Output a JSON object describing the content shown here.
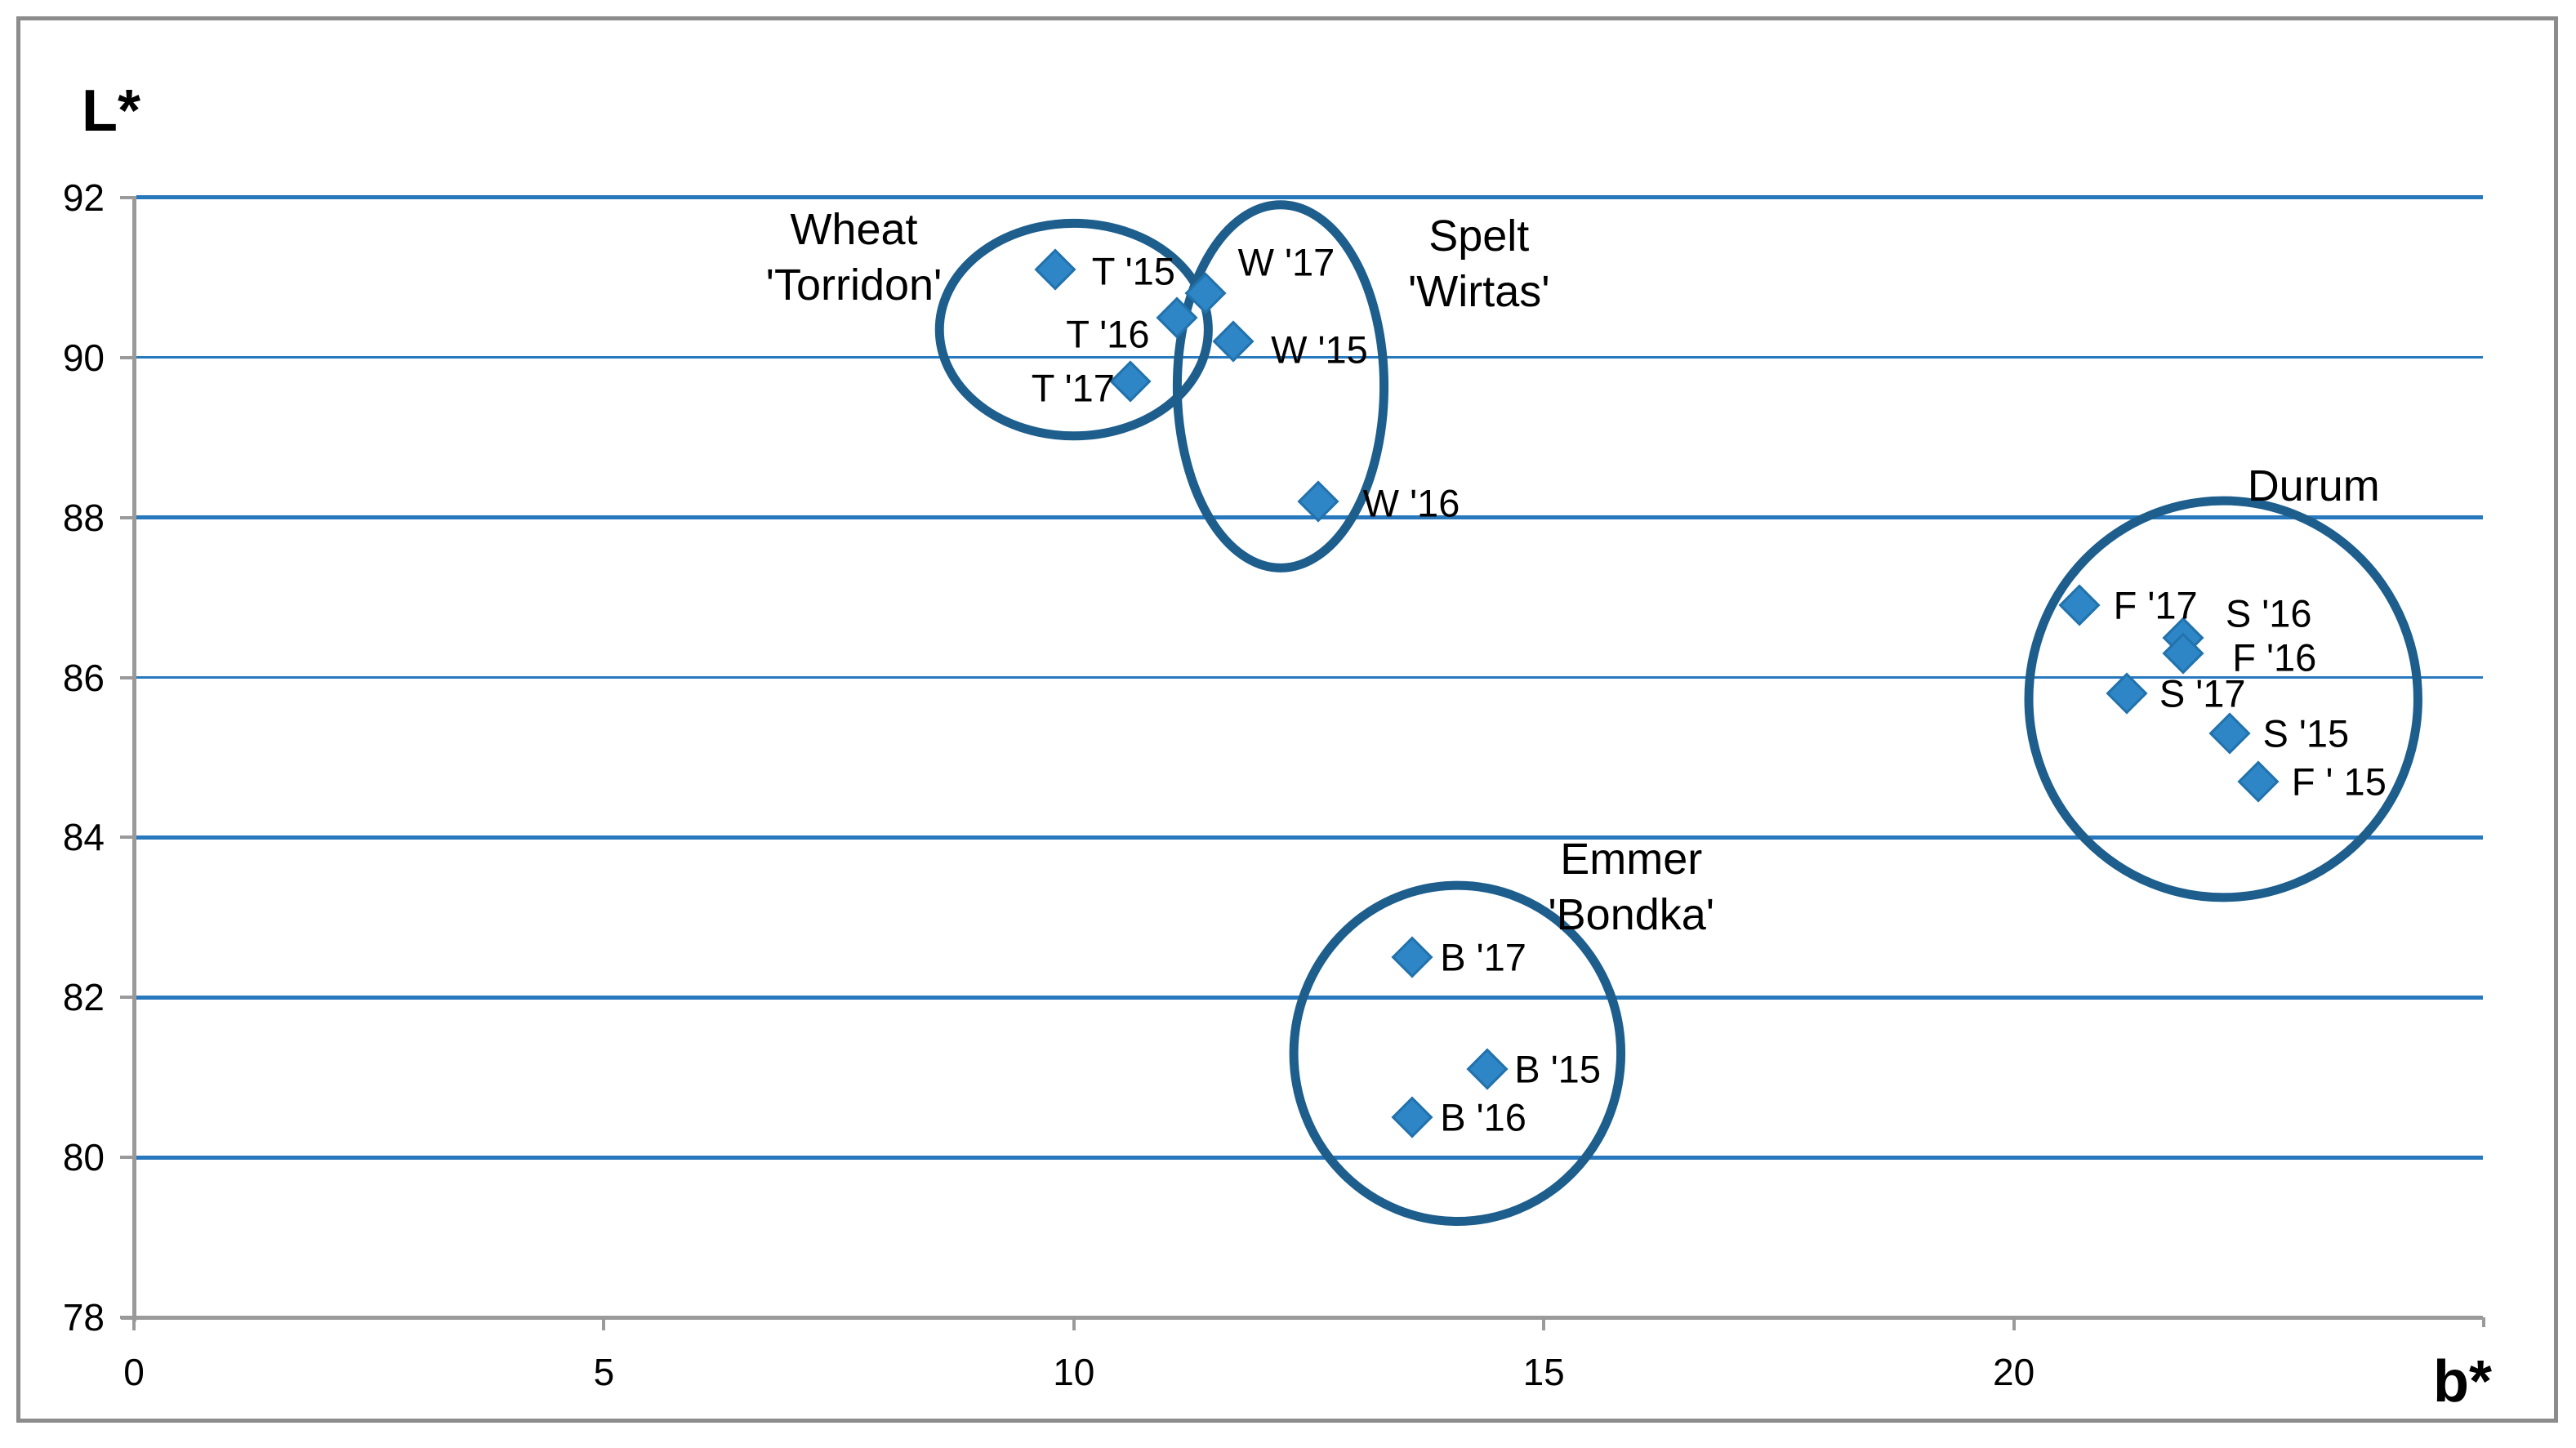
{
  "figure": {
    "y_axis_title": "L*",
    "x_axis_title": "b*"
  },
  "chart_data": {
    "type": "scatter",
    "title": "",
    "xlabel": "b*",
    "ylabel": "L*",
    "xlim": [
      0,
      25
    ],
    "ylim": [
      78,
      92
    ],
    "x_ticks": [
      0,
      5,
      10,
      15,
      20
    ],
    "x_axis_end_tick": 25,
    "y_ticks": [
      92,
      90,
      88,
      86,
      84,
      82,
      80,
      78
    ],
    "grid": "horizontal-only",
    "legend": "none",
    "marker": "diamond",
    "clusters": [
      {
        "name": "Wheat 'Torridon'",
        "label_lines": [
          "Wheat",
          "'Torridon'"
        ],
        "label_anchor": {
          "x": 7.66,
          "y": 91.25
        },
        "ellipse": {
          "cx": 10.0,
          "cy": 90.35,
          "rx": 1.43,
          "ry": 1.33
        },
        "points": [
          {
            "label": "T '15",
            "x": 9.8,
            "y": 91.1,
            "label_dx": 96,
            "label_dy": 2
          },
          {
            "label": "T '16",
            "x": 11.1,
            "y": 90.5,
            "label_dx": -85,
            "label_dy": 20
          },
          {
            "label": "T '17",
            "x": 10.6,
            "y": 89.7,
            "label_dx": -70,
            "label_dy": 8
          }
        ]
      },
      {
        "name": "Spelt 'Wirtas'",
        "label_lines": [
          "Spelt",
          "'Wirtas'"
        ],
        "label_anchor": {
          "x": 14.31,
          "y": 91.17
        },
        "ellipse": {
          "cx": 12.2,
          "cy": 89.64,
          "rx": 1.1,
          "ry": 2.27
        },
        "points": [
          {
            "label": "W '17",
            "x": 11.4,
            "y": 90.8,
            "label_dx": 99,
            "label_dy": -38
          },
          {
            "label": "W '15",
            "x": 11.7,
            "y": 90.2,
            "label_dx": 105,
            "label_dy": 10
          },
          {
            "label": "W '16",
            "x": 12.6,
            "y": 88.2,
            "label_dx": 114,
            "label_dy": 2
          }
        ]
      },
      {
        "name": "Emmer 'Bondka'",
        "label_lines": [
          "Emmer",
          "'Bondka'"
        ],
        "label_anchor": {
          "x": 15.93,
          "y": 83.38
        },
        "ellipse": {
          "cx": 14.08,
          "cy": 81.3,
          "rx": 1.74,
          "ry": 2.1
        },
        "points": [
          {
            "label": "B '17",
            "x": 13.6,
            "y": 82.5,
            "label_dx": 87,
            "label_dy": 0
          },
          {
            "label": "B '15",
            "x": 14.4,
            "y": 81.1,
            "label_dx": 86,
            "label_dy": 0
          },
          {
            "label": "B '16",
            "x": 13.6,
            "y": 80.5,
            "label_dx": 87,
            "label_dy": 0
          }
        ]
      },
      {
        "name": "Durum",
        "label_lines": [
          "Durum"
        ],
        "label_anchor": {
          "x": 23.19,
          "y": 88.4
        },
        "ellipse": {
          "cx": 22.23,
          "cy": 85.73,
          "rx": 2.07,
          "ry": 2.48
        },
        "points": [
          {
            "label": "F '17",
            "x": 20.7,
            "y": 86.9,
            "label_dx": 93,
            "label_dy": 0
          },
          {
            "label": "S '16",
            "x": 21.8,
            "y": 86.5,
            "label_dx": 105,
            "label_dy": -30
          },
          {
            "label": "F '16",
            "x": 21.8,
            "y": 86.3,
            "label_dx": 112,
            "label_dy": 5
          },
          {
            "label": "S '17",
            "x": 21.2,
            "y": 85.8,
            "label_dx": 93,
            "label_dy": 0
          },
          {
            "label": "S '15",
            "x": 22.3,
            "y": 85.3,
            "label_dx": 93,
            "label_dy": 0
          },
          {
            "label": "F ' 15",
            "x": 22.6,
            "y": 84.7,
            "label_dx": 99,
            "label_dy": 0
          }
        ]
      }
    ],
    "colors": {
      "gridline_blue": "#2878be",
      "marker_fill": "#2e86c6",
      "marker_edge": "#2272ac",
      "ellipse_stroke": "#1d5e8d",
      "axis_gray": "#9a9a9a",
      "border_gray": "#8c8c8c",
      "text_black": "#000000"
    }
  }
}
